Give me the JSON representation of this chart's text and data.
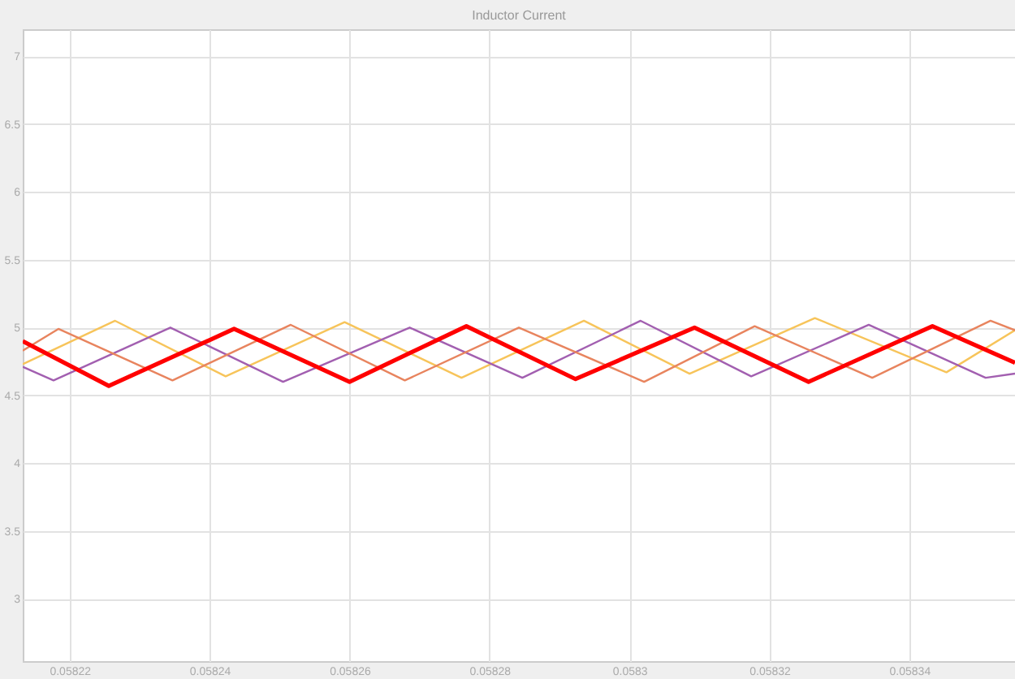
{
  "chart_data": {
    "type": "line",
    "title": "Inductor Current",
    "xlim": [
      0.0582133,
      0.0583551
    ],
    "xticks": [
      0.05822,
      0.05824,
      0.05826,
      0.05828,
      0.0583,
      0.05832,
      0.05834
    ],
    "ylim": [
      2.54,
      7.2
    ],
    "yticks": [
      3,
      3.5,
      4,
      4.5,
      5,
      5.5,
      6,
      6.5,
      7
    ],
    "grid": true,
    "marker": "none",
    "line_style": "solid",
    "series": [
      {
        "color": "#f7c45a",
        "x": [
          0.0582133,
          0.0582265,
          0.0582423,
          0.0582593,
          0.058276,
          0.0582935,
          0.0583086,
          0.0583265,
          0.0583453,
          0.0583551
        ],
        "values": [
          4.73,
          5.05,
          4.64,
          5.04,
          4.63,
          5.05,
          4.66,
          5.07,
          4.67,
          4.98
        ]
      },
      {
        "color": "#a25fb0",
        "x": [
          0.0582133,
          0.0582177,
          0.0582344,
          0.0582505,
          0.0582686,
          0.0582847,
          0.0583016,
          0.0583174,
          0.0583342,
          0.0583509,
          0.0583551
        ],
        "values": [
          4.71,
          4.61,
          5.0,
          4.6,
          5.0,
          4.63,
          5.05,
          4.64,
          5.02,
          4.63,
          4.66
        ]
      },
      {
        "color": "#e8845e",
        "x": [
          0.0582133,
          0.0582184,
          0.0582347,
          0.0582516,
          0.0582679,
          0.0582842,
          0.0583021,
          0.0583179,
          0.0583347,
          0.0583516,
          0.0583551
        ],
        "values": [
          4.83,
          4.99,
          4.61,
          5.02,
          4.61,
          5.0,
          4.6,
          5.01,
          4.63,
          5.05,
          4.98
        ]
      },
      {
        "color": "#ff0000",
        "x": [
          0.0582133,
          0.0582256,
          0.0582435,
          0.05826,
          0.0582767,
          0.0582923,
          0.0583093,
          0.0583256,
          0.0583433,
          0.0583551
        ],
        "values": [
          4.9,
          4.57,
          4.99,
          4.6,
          5.01,
          4.62,
          5.0,
          4.6,
          5.01,
          4.74
        ]
      }
    ]
  }
}
